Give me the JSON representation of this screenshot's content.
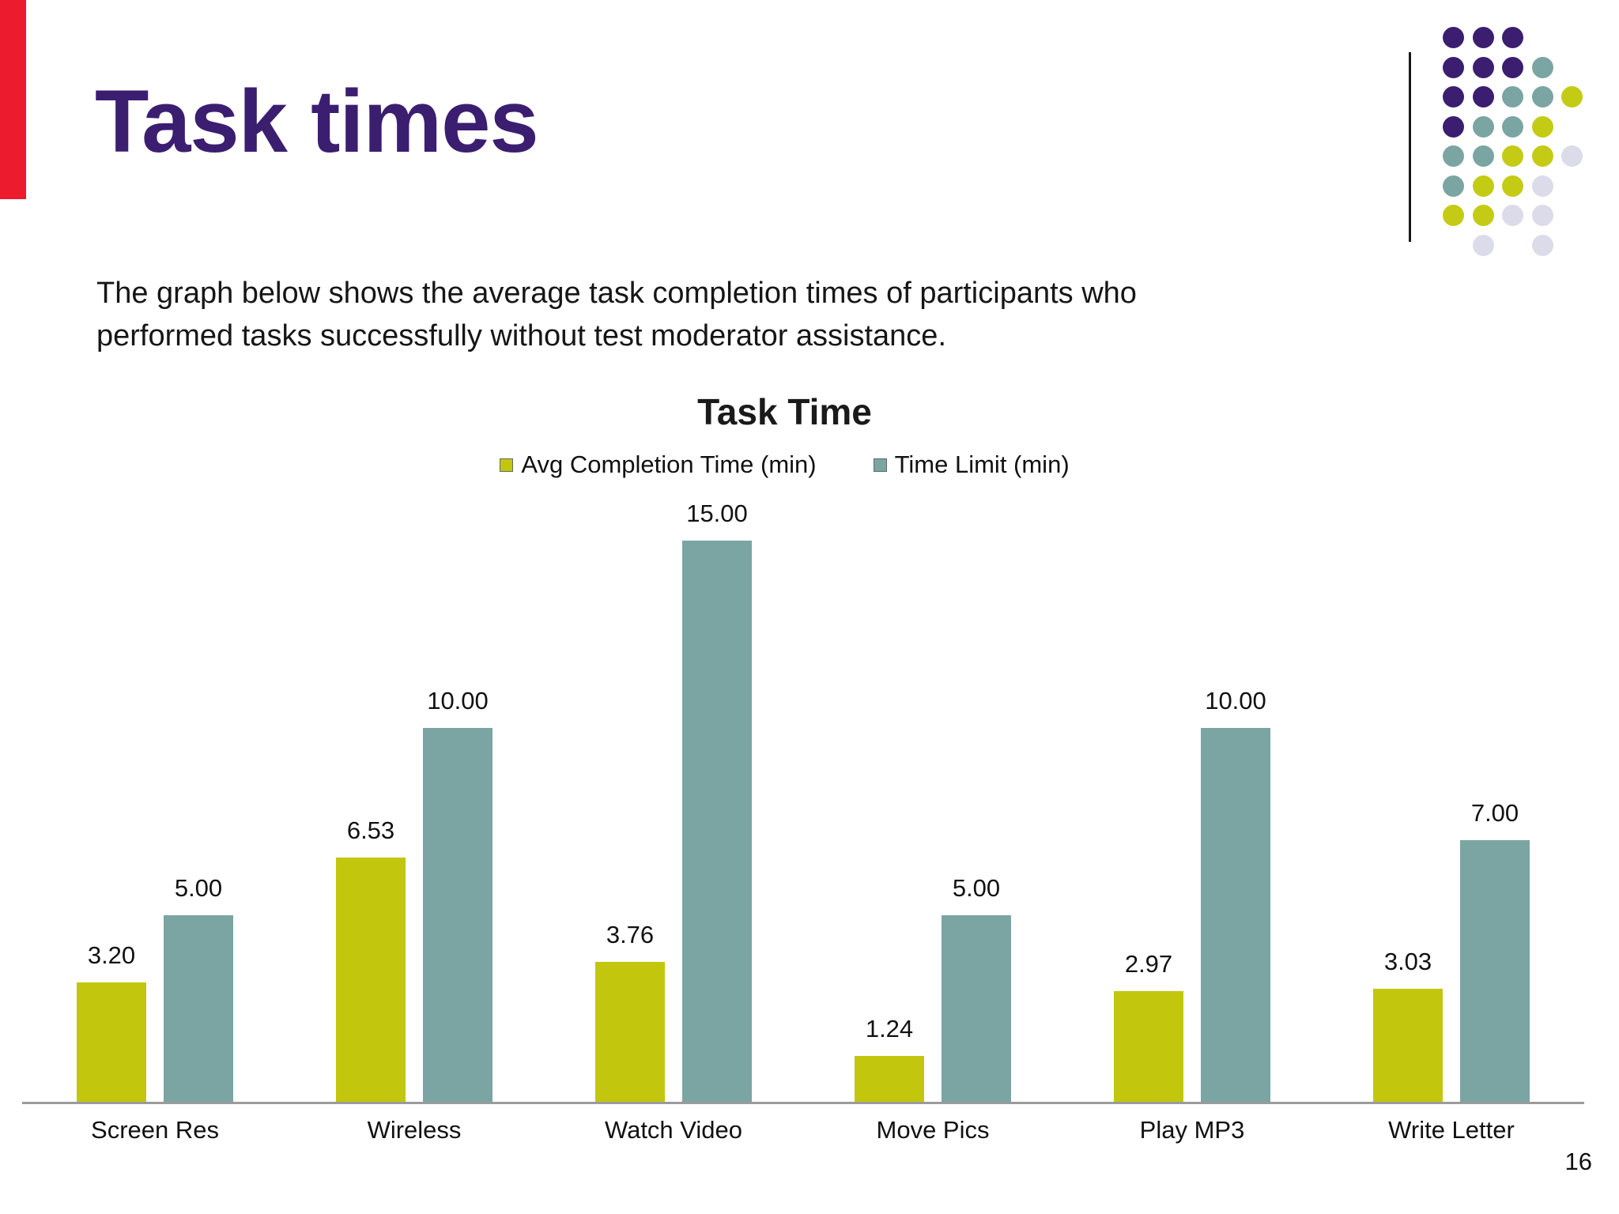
{
  "slide": {
    "title": "Task times",
    "body_line1": "The graph below shows the average task completion times of participants who",
    "body_line2": "performed tasks successfully without test moderator assistance.",
    "page_number": "16"
  },
  "colors": {
    "accent_red": "#ec1b2e",
    "title_purple": "#3b1e70",
    "bar_yellow": "#c2c70d",
    "bar_teal": "#7aa5a2",
    "dot_purple": "#3b1e70",
    "dot_teal": "#7aa5a2",
    "dot_yellow": "#c4cb14",
    "dot_lavender": "#dcdbe9",
    "axis_gray": "#9b9b9b"
  },
  "decoration": {
    "dot_grid": [
      [
        "p",
        "p",
        "p",
        "",
        ""
      ],
      [
        "p",
        "p",
        "p",
        "t",
        ""
      ],
      [
        "p",
        "p",
        "t",
        "t",
        "y"
      ],
      [
        "p",
        "t",
        "t",
        "y",
        ""
      ],
      [
        "t",
        "t",
        "y",
        "y",
        "l"
      ],
      [
        "t",
        "y",
        "y",
        "l",
        ""
      ],
      [
        "y",
        "y",
        "l",
        "l",
        ""
      ],
      [
        "",
        "l",
        "",
        "l",
        ""
      ]
    ]
  },
  "chart_data": {
    "type": "bar",
    "title": "Task Time",
    "categories": [
      "Screen Res",
      "Wireless",
      "Watch Video",
      "Move Pics",
      "Play MP3",
      "Write Letter"
    ],
    "series": [
      {
        "name": "Avg Completion Time (min)",
        "color_key": "bar_yellow",
        "values": [
          3.2,
          6.53,
          3.76,
          1.24,
          2.97,
          3.03
        ],
        "labels": [
          "3.20",
          "6.53",
          "3.76",
          "1.24",
          "2.97",
          "3.03"
        ]
      },
      {
        "name": "Time Limit (min)",
        "color_key": "bar_teal",
        "values": [
          5.0,
          10.0,
          15.0,
          5.0,
          10.0,
          7.0
        ],
        "labels": [
          "5.00",
          "10.00",
          "15.00",
          "5.00",
          "10.00",
          "7.00"
        ]
      }
    ],
    "xlabel": "",
    "ylabel": "",
    "ylim": [
      0,
      15.6
    ],
    "grid": false,
    "legend_position": "top",
    "value_labels": true
  }
}
